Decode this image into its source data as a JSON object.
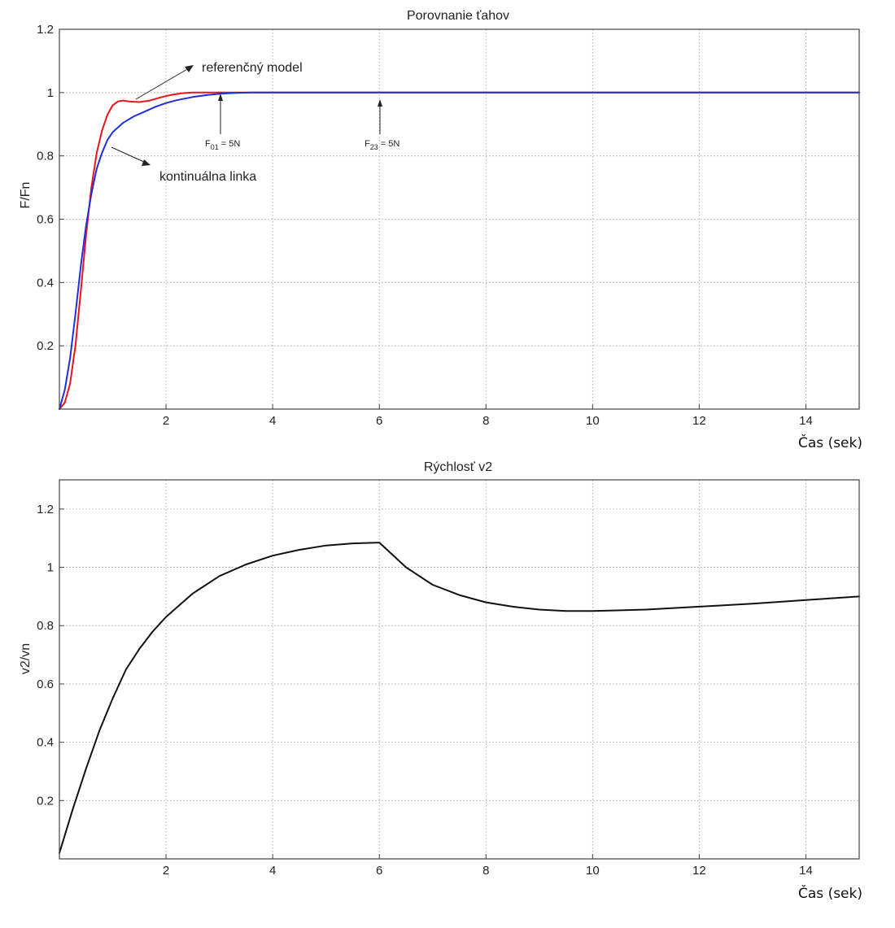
{
  "chart_data": [
    {
      "type": "line",
      "title": "Porovnanie ťahov",
      "xlabel": "Čas (sek)",
      "ylabel": "F/Fn",
      "xlim": [
        0,
        15
      ],
      "ylim": [
        0,
        1.2
      ],
      "xticks": [
        2,
        4,
        6,
        8,
        10,
        12,
        14
      ],
      "xtick_labels": [
        "2",
        "4",
        "6",
        "8",
        "10",
        "12",
        "14"
      ],
      "yticks": [
        0.2,
        0.4,
        0.6,
        0.8,
        1,
        1.2
      ],
      "ytick_labels": [
        "0.2",
        "0.4",
        "0.6",
        "0.8",
        "1",
        "1.2"
      ],
      "grid": true,
      "series": [
        {
          "color": "#e8141c",
          "x": [
            0,
            0.1,
            0.2,
            0.3,
            0.4,
            0.5,
            0.6,
            0.7,
            0.8,
            0.9,
            1.0,
            1.1,
            1.2,
            1.3,
            1.5,
            1.7,
            1.9,
            2.1,
            2.3,
            2.5,
            2.8,
            3.2,
            15
          ],
          "y": [
            0,
            0.02,
            0.08,
            0.2,
            0.37,
            0.55,
            0.7,
            0.81,
            0.88,
            0.93,
            0.96,
            0.972,
            0.975,
            0.972,
            0.97,
            0.975,
            0.985,
            0.993,
            0.998,
            1.0,
            1.0,
            1.0,
            1.0
          ]
        },
        {
          "color": "#1f2fe0",
          "x": [
            0,
            0.1,
            0.2,
            0.3,
            0.4,
            0.5,
            0.6,
            0.7,
            0.8,
            0.9,
            1.0,
            1.2,
            1.4,
            1.6,
            1.8,
            2.0,
            2.2,
            2.5,
            2.8,
            3.0,
            3.3,
            3.6,
            4.0,
            15
          ],
          "y": [
            0,
            0.06,
            0.16,
            0.3,
            0.45,
            0.58,
            0.68,
            0.76,
            0.81,
            0.85,
            0.875,
            0.905,
            0.925,
            0.94,
            0.955,
            0.967,
            0.976,
            0.986,
            0.993,
            0.996,
            0.999,
            1.0,
            1.0,
            1.0
          ]
        }
      ],
      "annotations": {
        "reference_model": "referenčný model",
        "continuous_line": "kontinuálna linka",
        "force_01_main": "F",
        "force_01_sub": "01",
        "force_01_value": " = 5N",
        "force_23_main": "F",
        "force_23_sub": "23",
        "force_23_value": " = 5N",
        "force_01_x": 3.0,
        "force_23_x": 6.0
      }
    },
    {
      "type": "line",
      "title": "Rýchlosť v2",
      "xlabel": "Čas (sek)",
      "ylabel": "v2/vn",
      "xlim": [
        0,
        15
      ],
      "ylim": [
        0,
        1.3
      ],
      "xticks": [
        2,
        4,
        6,
        8,
        10,
        12,
        14
      ],
      "xtick_labels": [
        "2",
        "4",
        "6",
        "8",
        "10",
        "12",
        "14"
      ],
      "yticks": [
        0.2,
        0.4,
        0.6,
        0.8,
        1,
        1.2
      ],
      "ytick_labels": [
        "0.2",
        "0.4",
        "0.6",
        "0.8",
        "1",
        "1.2"
      ],
      "grid": true,
      "series": [
        {
          "color": "#111111",
          "x": [
            0,
            0.25,
            0.5,
            0.75,
            1.0,
            1.25,
            1.5,
            1.75,
            2.0,
            2.5,
            3.0,
            3.5,
            4.0,
            4.5,
            5.0,
            5.5,
            6.0,
            6.5,
            7.0,
            7.5,
            8.0,
            8.5,
            9.0,
            9.5,
            10.0,
            11.0,
            12.0,
            13.0,
            14.0,
            15.0
          ],
          "y": [
            0.02,
            0.17,
            0.31,
            0.44,
            0.55,
            0.65,
            0.72,
            0.78,
            0.83,
            0.91,
            0.97,
            1.01,
            1.04,
            1.06,
            1.075,
            1.082,
            1.085,
            1.0,
            0.94,
            0.905,
            0.88,
            0.865,
            0.855,
            0.85,
            0.85,
            0.855,
            0.865,
            0.875,
            0.888,
            0.9
          ]
        }
      ]
    }
  ]
}
